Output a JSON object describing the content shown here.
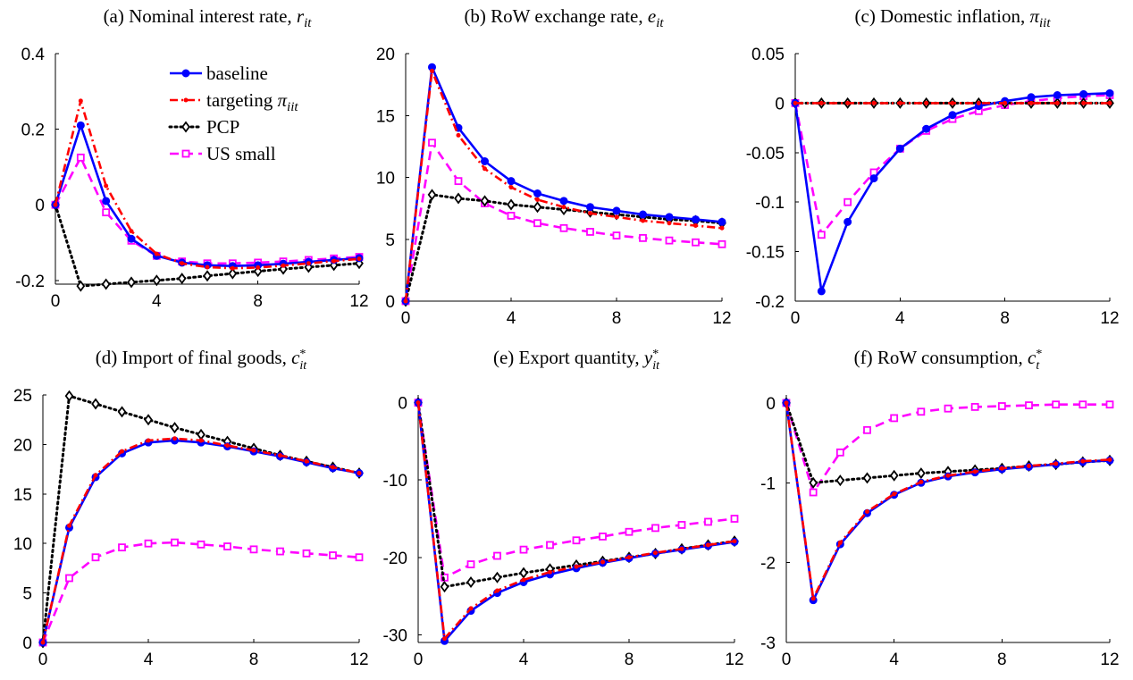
{
  "style": {
    "series_colors": {
      "baseline": "#0000ff",
      "targeting": "#ff0000",
      "pcp": "#000000",
      "us_small": "#ff00ff"
    },
    "series_dash": {
      "baseline": "solid",
      "targeting": "dash-dot",
      "pcp": "dotted",
      "us_small": "dashed"
    },
    "series_marker": {
      "baseline": "circle",
      "targeting": "dot",
      "pcp": "diamond",
      "us_small": "square"
    }
  },
  "legend": {
    "placement": "inside panel (a), upper right",
    "entries": [
      {
        "key": "baseline",
        "label": "baseline",
        "math": ""
      },
      {
        "key": "targeting",
        "label": "targeting ",
        "math": "π",
        "sub": "iit"
      },
      {
        "key": "pcp",
        "label": "PCP",
        "math": ""
      },
      {
        "key": "us_small",
        "label": "US small",
        "math": ""
      }
    ]
  },
  "chart_data": [
    {
      "type": "line",
      "panel": "a",
      "title": "(a) Nominal interest rate, ",
      "title_math": "r",
      "title_sub": "it",
      "title_sup": "",
      "x": [
        0,
        1,
        2,
        3,
        4,
        5,
        6,
        7,
        8,
        9,
        10,
        11,
        12
      ],
      "xlim": [
        0,
        12
      ],
      "xticks": [
        "0",
        "4",
        "8",
        "12"
      ],
      "ylim": [
        -0.21,
        0.4
      ],
      "yticks": [
        "-0.2",
        "0",
        "0.2",
        "0.4"
      ],
      "ytick_values": [
        -0.2,
        0,
        0.2,
        0.4
      ],
      "grid": false,
      "series": [
        {
          "key": "baseline",
          "name": "baseline",
          "values": [
            0,
            0.21,
            0.01,
            -0.09,
            -0.135,
            -0.153,
            -0.16,
            -0.162,
            -0.16,
            -0.156,
            -0.151,
            -0.146,
            -0.141
          ]
        },
        {
          "key": "targeting",
          "name": "targeting π_iit",
          "values": [
            0,
            0.275,
            0.05,
            -0.07,
            -0.13,
            -0.155,
            -0.165,
            -0.168,
            -0.166,
            -0.161,
            -0.155,
            -0.149,
            -0.143
          ]
        },
        {
          "key": "pcp",
          "name": "PCP",
          "values": [
            0,
            -0.215,
            -0.21,
            -0.205,
            -0.2,
            -0.195,
            -0.188,
            -0.182,
            -0.176,
            -0.17,
            -0.165,
            -0.16,
            -0.155
          ]
        },
        {
          "key": "us_small",
          "name": "US small",
          "values": [
            0,
            0.125,
            -0.02,
            -0.095,
            -0.135,
            -0.15,
            -0.155,
            -0.155,
            -0.153,
            -0.15,
            -0.146,
            -0.142,
            -0.138
          ]
        }
      ]
    },
    {
      "type": "line",
      "panel": "b",
      "title": "(b) RoW exchange rate, ",
      "title_math": "e",
      "title_sub": "it",
      "title_sup": "",
      "x": [
        0,
        1,
        2,
        3,
        4,
        5,
        6,
        7,
        8,
        9,
        10,
        11,
        12
      ],
      "xlim": [
        0,
        12
      ],
      "xticks": [
        "0",
        "4",
        "8",
        "12"
      ],
      "ylim": [
        0,
        20
      ],
      "yticks": [
        "0",
        "5",
        "10",
        "15",
        "20"
      ],
      "ytick_values": [
        0,
        5,
        10,
        15,
        20
      ],
      "grid": false,
      "series": [
        {
          "key": "baseline",
          "name": "baseline",
          "values": [
            0,
            18.9,
            14.0,
            11.3,
            9.7,
            8.7,
            8.1,
            7.6,
            7.3,
            7.0,
            6.8,
            6.6,
            6.4
          ]
        },
        {
          "key": "targeting",
          "name": "targeting π_iit",
          "values": [
            0,
            18.6,
            13.4,
            10.7,
            9.2,
            8.2,
            7.6,
            7.1,
            6.8,
            6.5,
            6.3,
            6.1,
            5.9
          ]
        },
        {
          "key": "pcp",
          "name": "PCP",
          "values": [
            0,
            8.6,
            8.3,
            8.1,
            7.8,
            7.6,
            7.4,
            7.2,
            7.0,
            6.8,
            6.6,
            6.5,
            6.3
          ]
        },
        {
          "key": "us_small",
          "name": "US small",
          "values": [
            0,
            12.8,
            9.7,
            7.9,
            6.9,
            6.3,
            5.9,
            5.6,
            5.3,
            5.1,
            4.9,
            4.75,
            4.6
          ]
        }
      ]
    },
    {
      "type": "line",
      "panel": "c",
      "title": "(c) Domestic inflation, ",
      "title_math": "π",
      "title_sub": "iit",
      "title_sup": "",
      "x": [
        0,
        1,
        2,
        3,
        4,
        5,
        6,
        7,
        8,
        9,
        10,
        11,
        12
      ],
      "xlim": [
        0,
        12
      ],
      "xticks": [
        "0",
        "4",
        "8",
        "12"
      ],
      "ylim": [
        -0.2,
        0.05
      ],
      "yticks": [
        "-0.2",
        "-0.15",
        "-0.1",
        "-0.05",
        "0",
        "0.05"
      ],
      "ytick_values": [
        -0.2,
        -0.15,
        -0.1,
        -0.05,
        0,
        0.05
      ],
      "grid": false,
      "series": [
        {
          "key": "baseline",
          "name": "baseline",
          "values": [
            0,
            -0.19,
            -0.12,
            -0.076,
            -0.046,
            -0.026,
            -0.012,
            -0.003,
            0.002,
            0.006,
            0.008,
            0.009,
            0.01
          ]
        },
        {
          "key": "targeting",
          "name": "targeting π_iit",
          "values": [
            0,
            0,
            0,
            0,
            0,
            0,
            0,
            0,
            0,
            0,
            0,
            0,
            0
          ]
        },
        {
          "key": "pcp",
          "name": "PCP",
          "values": [
            0,
            0,
            0,
            0,
            0,
            0,
            0,
            0,
            0,
            0,
            0,
            0,
            0
          ]
        },
        {
          "key": "us_small",
          "name": "US small",
          "values": [
            0,
            -0.133,
            -0.1,
            -0.07,
            -0.046,
            -0.028,
            -0.016,
            -0.008,
            -0.002,
            0.002,
            0.005,
            0.007,
            0.008
          ]
        }
      ]
    },
    {
      "type": "line",
      "panel": "d",
      "title": "(d) Import of final goods, ",
      "title_math": "c",
      "title_sub": "it",
      "title_sup": "*",
      "x": [
        0,
        1,
        2,
        3,
        4,
        5,
        6,
        7,
        8,
        9,
        10,
        11,
        12
      ],
      "xlim": [
        0,
        12
      ],
      "xticks": [
        "0",
        "4",
        "8",
        "12"
      ],
      "ylim": [
        0,
        25
      ],
      "yticks": [
        "0",
        "5",
        "10",
        "15",
        "20",
        "25"
      ],
      "ytick_values": [
        0,
        5,
        10,
        15,
        20,
        25
      ],
      "grid": false,
      "series": [
        {
          "key": "baseline",
          "name": "baseline",
          "values": [
            0,
            11.6,
            16.7,
            19.1,
            20.2,
            20.4,
            20.2,
            19.8,
            19.3,
            18.8,
            18.2,
            17.6,
            17.1
          ]
        },
        {
          "key": "targeting",
          "name": "targeting π_iit",
          "values": [
            0,
            11.8,
            16.9,
            19.3,
            20.4,
            20.6,
            20.4,
            19.9,
            19.4,
            18.9,
            18.3,
            17.7,
            17.1
          ]
        },
        {
          "key": "pcp",
          "name": "PCP",
          "values": [
            0,
            24.9,
            24.1,
            23.3,
            22.5,
            21.7,
            21.0,
            20.3,
            19.6,
            18.9,
            18.3,
            17.7,
            17.1
          ]
        },
        {
          "key": "us_small",
          "name": "US small",
          "values": [
            0,
            6.5,
            8.6,
            9.6,
            10.0,
            10.1,
            9.9,
            9.7,
            9.4,
            9.2,
            9.0,
            8.8,
            8.6
          ]
        }
      ]
    },
    {
      "type": "line",
      "panel": "e",
      "title": "(e) Export quantity, ",
      "title_math": "y",
      "title_sub": "it",
      "title_sup": "*",
      "x": [
        0,
        1,
        2,
        3,
        4,
        5,
        6,
        7,
        8,
        9,
        10,
        11,
        12
      ],
      "xlim": [
        0,
        12
      ],
      "xticks": [
        "0",
        "4",
        "8",
        "12"
      ],
      "ylim": [
        -31,
        1
      ],
      "yticks": [
        "-30",
        "-20",
        "-10",
        "0"
      ],
      "ytick_values": [
        -30,
        -20,
        -10,
        0
      ],
      "grid": false,
      "series": [
        {
          "key": "baseline",
          "name": "baseline",
          "values": [
            0,
            -30.8,
            -26.9,
            -24.6,
            -23.2,
            -22.2,
            -21.4,
            -20.7,
            -20.1,
            -19.5,
            -19.0,
            -18.5,
            -18.0
          ]
        },
        {
          "key": "targeting",
          "name": "targeting π_iit",
          "values": [
            0,
            -30.5,
            -26.6,
            -24.3,
            -22.9,
            -21.9,
            -21.2,
            -20.6,
            -20.0,
            -19.4,
            -18.9,
            -18.4,
            -17.9
          ]
        },
        {
          "key": "pcp",
          "name": "PCP",
          "values": [
            0,
            -23.8,
            -23.2,
            -22.6,
            -22.0,
            -21.5,
            -21.0,
            -20.5,
            -20.0,
            -19.5,
            -18.9,
            -18.4,
            -17.9
          ]
        },
        {
          "key": "us_small",
          "name": "US small",
          "values": [
            0,
            -22.6,
            -20.9,
            -19.8,
            -19.0,
            -18.4,
            -17.8,
            -17.3,
            -16.7,
            -16.2,
            -15.8,
            -15.4,
            -15.0
          ]
        }
      ]
    },
    {
      "type": "line",
      "panel": "f",
      "title": "(f) RoW consumption, ",
      "title_math": "c",
      "title_sub": "t",
      "title_sup": "*",
      "x": [
        0,
        1,
        2,
        3,
        4,
        5,
        6,
        7,
        8,
        9,
        10,
        11,
        12
      ],
      "xlim": [
        0,
        12
      ],
      "xticks": [
        "0",
        "4",
        "8",
        "12"
      ],
      "ylim": [
        -3,
        0.1
      ],
      "yticks": [
        "-3",
        "-2",
        "-1",
        "0"
      ],
      "ytick_values": [
        -3,
        -2,
        -1,
        0
      ],
      "grid": false,
      "series": [
        {
          "key": "baseline",
          "name": "baseline",
          "values": [
            0,
            -2.47,
            -1.77,
            -1.38,
            -1.15,
            -1.0,
            -0.92,
            -0.87,
            -0.83,
            -0.8,
            -0.77,
            -0.74,
            -0.72
          ]
        },
        {
          "key": "targeting",
          "name": "targeting π_iit",
          "values": [
            0,
            -2.45,
            -1.75,
            -1.36,
            -1.14,
            -0.99,
            -0.91,
            -0.86,
            -0.82,
            -0.79,
            -0.76,
            -0.73,
            -0.71
          ]
        },
        {
          "key": "pcp",
          "name": "PCP",
          "values": [
            0,
            -1.0,
            -0.97,
            -0.94,
            -0.91,
            -0.88,
            -0.86,
            -0.84,
            -0.82,
            -0.79,
            -0.77,
            -0.74,
            -0.72
          ]
        },
        {
          "key": "us_small",
          "name": "US small",
          "values": [
            0,
            -1.12,
            -0.62,
            -0.34,
            -0.19,
            -0.11,
            -0.07,
            -0.05,
            -0.04,
            -0.03,
            -0.02,
            -0.02,
            -0.02
          ]
        }
      ]
    }
  ]
}
